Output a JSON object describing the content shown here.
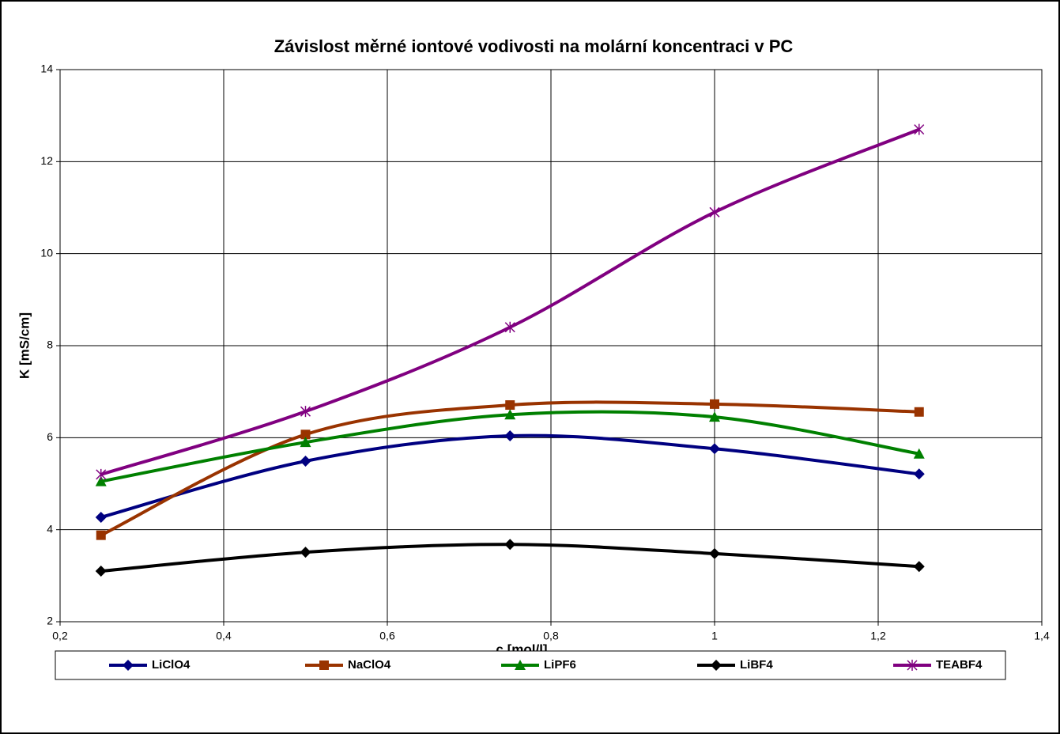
{
  "chart_data": {
    "type": "line",
    "title": "Závislost měrné iontové vodivosti na molární koncentraci v PC",
    "xlabel": "c [mol/l]",
    "ylabel": "K [mS/cm]",
    "x": [
      0.25,
      0.5,
      0.75,
      1,
      1.25
    ],
    "series": [
      {
        "name": "LiClO4",
        "color": "#000080",
        "marker": "diamond",
        "values": [
          4.27,
          5.49,
          6.04,
          5.76,
          5.21
        ]
      },
      {
        "name": "NaClO4",
        "color": "#993300",
        "marker": "square",
        "values": [
          3.88,
          6.07,
          6.71,
          6.73,
          6.56
        ]
      },
      {
        "name": "LiPF6",
        "color": "#008000",
        "marker": "triangle",
        "values": [
          5.05,
          5.9,
          6.5,
          6.45,
          5.65
        ]
      },
      {
        "name": "LiBF4",
        "color": "#000000",
        "marker": "diamond",
        "values": [
          3.1,
          3.51,
          3.68,
          3.48,
          3.2
        ]
      },
      {
        "name": "TEABF4",
        "color": "#800080",
        "marker": "star",
        "values": [
          5.2,
          6.57,
          8.4,
          10.9,
          12.7
        ]
      }
    ],
    "xlim": [
      0.2,
      1.4
    ],
    "xticks": [
      {
        "value": 0.2,
        "label": "0,2"
      },
      {
        "value": 0.4,
        "label": "0,4"
      },
      {
        "value": 0.6,
        "label": "0,6"
      },
      {
        "value": 0.8,
        "label": "0,8"
      },
      1,
      {
        "value": 1.2,
        "label": "1,2"
      },
      {
        "value": 1.4,
        "label": "1,4"
      }
    ],
    "ylim": [
      2,
      14
    ],
    "yticks": [
      2,
      4,
      6,
      8,
      10,
      12,
      14
    ],
    "grid": true,
    "smooth": true,
    "legend": "bottom"
  }
}
